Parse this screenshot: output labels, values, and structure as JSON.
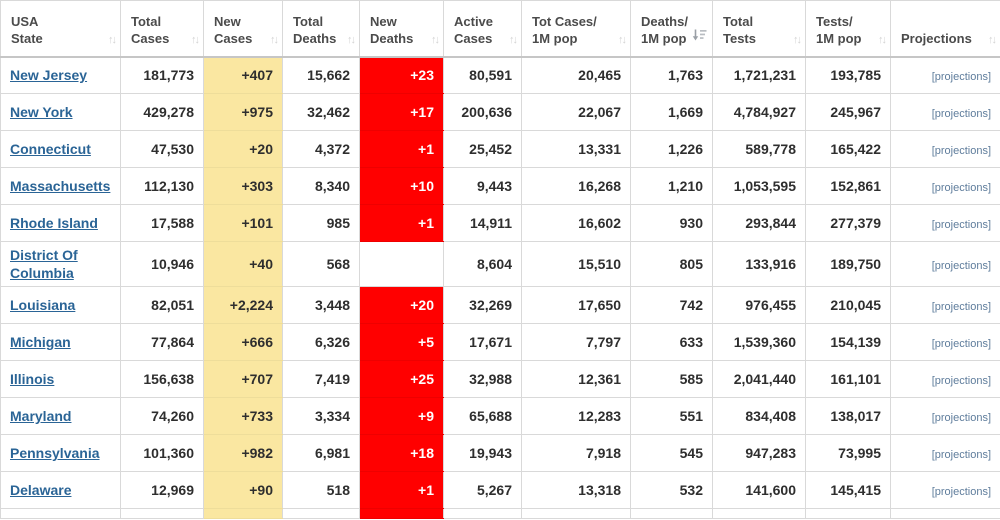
{
  "colors": {
    "new_cases_bg": "#FAE7A1",
    "new_deaths_bg": "#FF0000",
    "state_link": "#2A6496",
    "projections_link": "#5F7D9C"
  },
  "table": {
    "projections_label": "[projections]",
    "columns": [
      {
        "key": "state",
        "label_lines": [
          "USA",
          "State"
        ],
        "sort": "none"
      },
      {
        "key": "total_cases",
        "label_lines": [
          "Total",
          "Cases"
        ],
        "sort": "none"
      },
      {
        "key": "new_cases",
        "label_lines": [
          "New",
          "Cases"
        ],
        "sort": "none"
      },
      {
        "key": "total_deaths",
        "label_lines": [
          "Total",
          "Deaths"
        ],
        "sort": "none"
      },
      {
        "key": "new_deaths",
        "label_lines": [
          "New",
          "Deaths"
        ],
        "sort": "none"
      },
      {
        "key": "active_cases",
        "label_lines": [
          "Active",
          "Cases"
        ],
        "sort": "none"
      },
      {
        "key": "tot_cases_1m",
        "label_lines": [
          "Tot Cases/",
          "1M pop"
        ],
        "sort": "none"
      },
      {
        "key": "deaths_1m",
        "label_lines": [
          "Deaths/",
          "1M pop"
        ],
        "sort": "desc"
      },
      {
        "key": "total_tests",
        "label_lines": [
          "Total",
          "Tests"
        ],
        "sort": "none"
      },
      {
        "key": "tests_1m",
        "label_lines": [
          "Tests/",
          "1M pop"
        ],
        "sort": "none"
      },
      {
        "key": "projections",
        "label_lines": [
          "Projections"
        ],
        "sort": "none"
      }
    ],
    "rows": [
      {
        "state": "New Jersey",
        "total_cases": "181,773",
        "new_cases": "+407",
        "total_deaths": "15,662",
        "new_deaths": "+23",
        "active_cases": "80,591",
        "tot_cases_1m": "20,465",
        "deaths_1m": "1,763",
        "total_tests": "1,721,231",
        "tests_1m": "193,785",
        "projections": "[projections]"
      },
      {
        "state": "New York",
        "total_cases": "429,278",
        "new_cases": "+975",
        "total_deaths": "32,462",
        "new_deaths": "+17",
        "active_cases": "200,636",
        "tot_cases_1m": "22,067",
        "deaths_1m": "1,669",
        "total_tests": "4,784,927",
        "tests_1m": "245,967",
        "projections": "[projections]"
      },
      {
        "state": "Connecticut",
        "total_cases": "47,530",
        "new_cases": "+20",
        "total_deaths": "4,372",
        "new_deaths": "+1",
        "active_cases": "25,452",
        "tot_cases_1m": "13,331",
        "deaths_1m": "1,226",
        "total_tests": "589,778",
        "tests_1m": "165,422",
        "projections": "[projections]"
      },
      {
        "state": "Massachusetts",
        "total_cases": "112,130",
        "new_cases": "+303",
        "total_deaths": "8,340",
        "new_deaths": "+10",
        "active_cases": "9,443",
        "tot_cases_1m": "16,268",
        "deaths_1m": "1,210",
        "total_tests": "1,053,595",
        "tests_1m": "152,861",
        "projections": "[projections]"
      },
      {
        "state": "Rhode Island",
        "total_cases": "17,588",
        "new_cases": "+101",
        "total_deaths": "985",
        "new_deaths": "+1",
        "active_cases": "14,911",
        "tot_cases_1m": "16,602",
        "deaths_1m": "930",
        "total_tests": "293,844",
        "tests_1m": "277,379",
        "projections": "[projections]"
      },
      {
        "state": "District Of Columbia",
        "total_cases": "10,946",
        "new_cases": "+40",
        "total_deaths": "568",
        "new_deaths": "",
        "active_cases": "8,604",
        "tot_cases_1m": "15,510",
        "deaths_1m": "805",
        "total_tests": "133,916",
        "tests_1m": "189,750",
        "projections": "[projections]"
      },
      {
        "state": "Louisiana",
        "total_cases": "82,051",
        "new_cases": "+2,224",
        "total_deaths": "3,448",
        "new_deaths": "+20",
        "active_cases": "32,269",
        "tot_cases_1m": "17,650",
        "deaths_1m": "742",
        "total_tests": "976,455",
        "tests_1m": "210,045",
        "projections": "[projections]"
      },
      {
        "state": "Michigan",
        "total_cases": "77,864",
        "new_cases": "+666",
        "total_deaths": "6,326",
        "new_deaths": "+5",
        "active_cases": "17,671",
        "tot_cases_1m": "7,797",
        "deaths_1m": "633",
        "total_tests": "1,539,360",
        "tests_1m": "154,139",
        "projections": "[projections]"
      },
      {
        "state": "Illinois",
        "total_cases": "156,638",
        "new_cases": "+707",
        "total_deaths": "7,419",
        "new_deaths": "+25",
        "active_cases": "32,988",
        "tot_cases_1m": "12,361",
        "deaths_1m": "585",
        "total_tests": "2,041,440",
        "tests_1m": "161,101",
        "projections": "[projections]"
      },
      {
        "state": "Maryland",
        "total_cases": "74,260",
        "new_cases": "+733",
        "total_deaths": "3,334",
        "new_deaths": "+9",
        "active_cases": "65,688",
        "tot_cases_1m": "12,283",
        "deaths_1m": "551",
        "total_tests": "834,408",
        "tests_1m": "138,017",
        "projections": "[projections]"
      },
      {
        "state": "Pennsylvania",
        "total_cases": "101,360",
        "new_cases": "+982",
        "total_deaths": "6,981",
        "new_deaths": "+18",
        "active_cases": "19,943",
        "tot_cases_1m": "7,918",
        "deaths_1m": "545",
        "total_tests": "947,283",
        "tests_1m": "73,995",
        "projections": "[projections]"
      },
      {
        "state": "Delaware",
        "total_cases": "12,969",
        "new_cases": "+90",
        "total_deaths": "518",
        "new_deaths": "+1",
        "active_cases": "5,267",
        "tot_cases_1m": "13,318",
        "deaths_1m": "532",
        "total_tests": "141,600",
        "tests_1m": "145,415",
        "projections": "[projections]"
      }
    ]
  }
}
